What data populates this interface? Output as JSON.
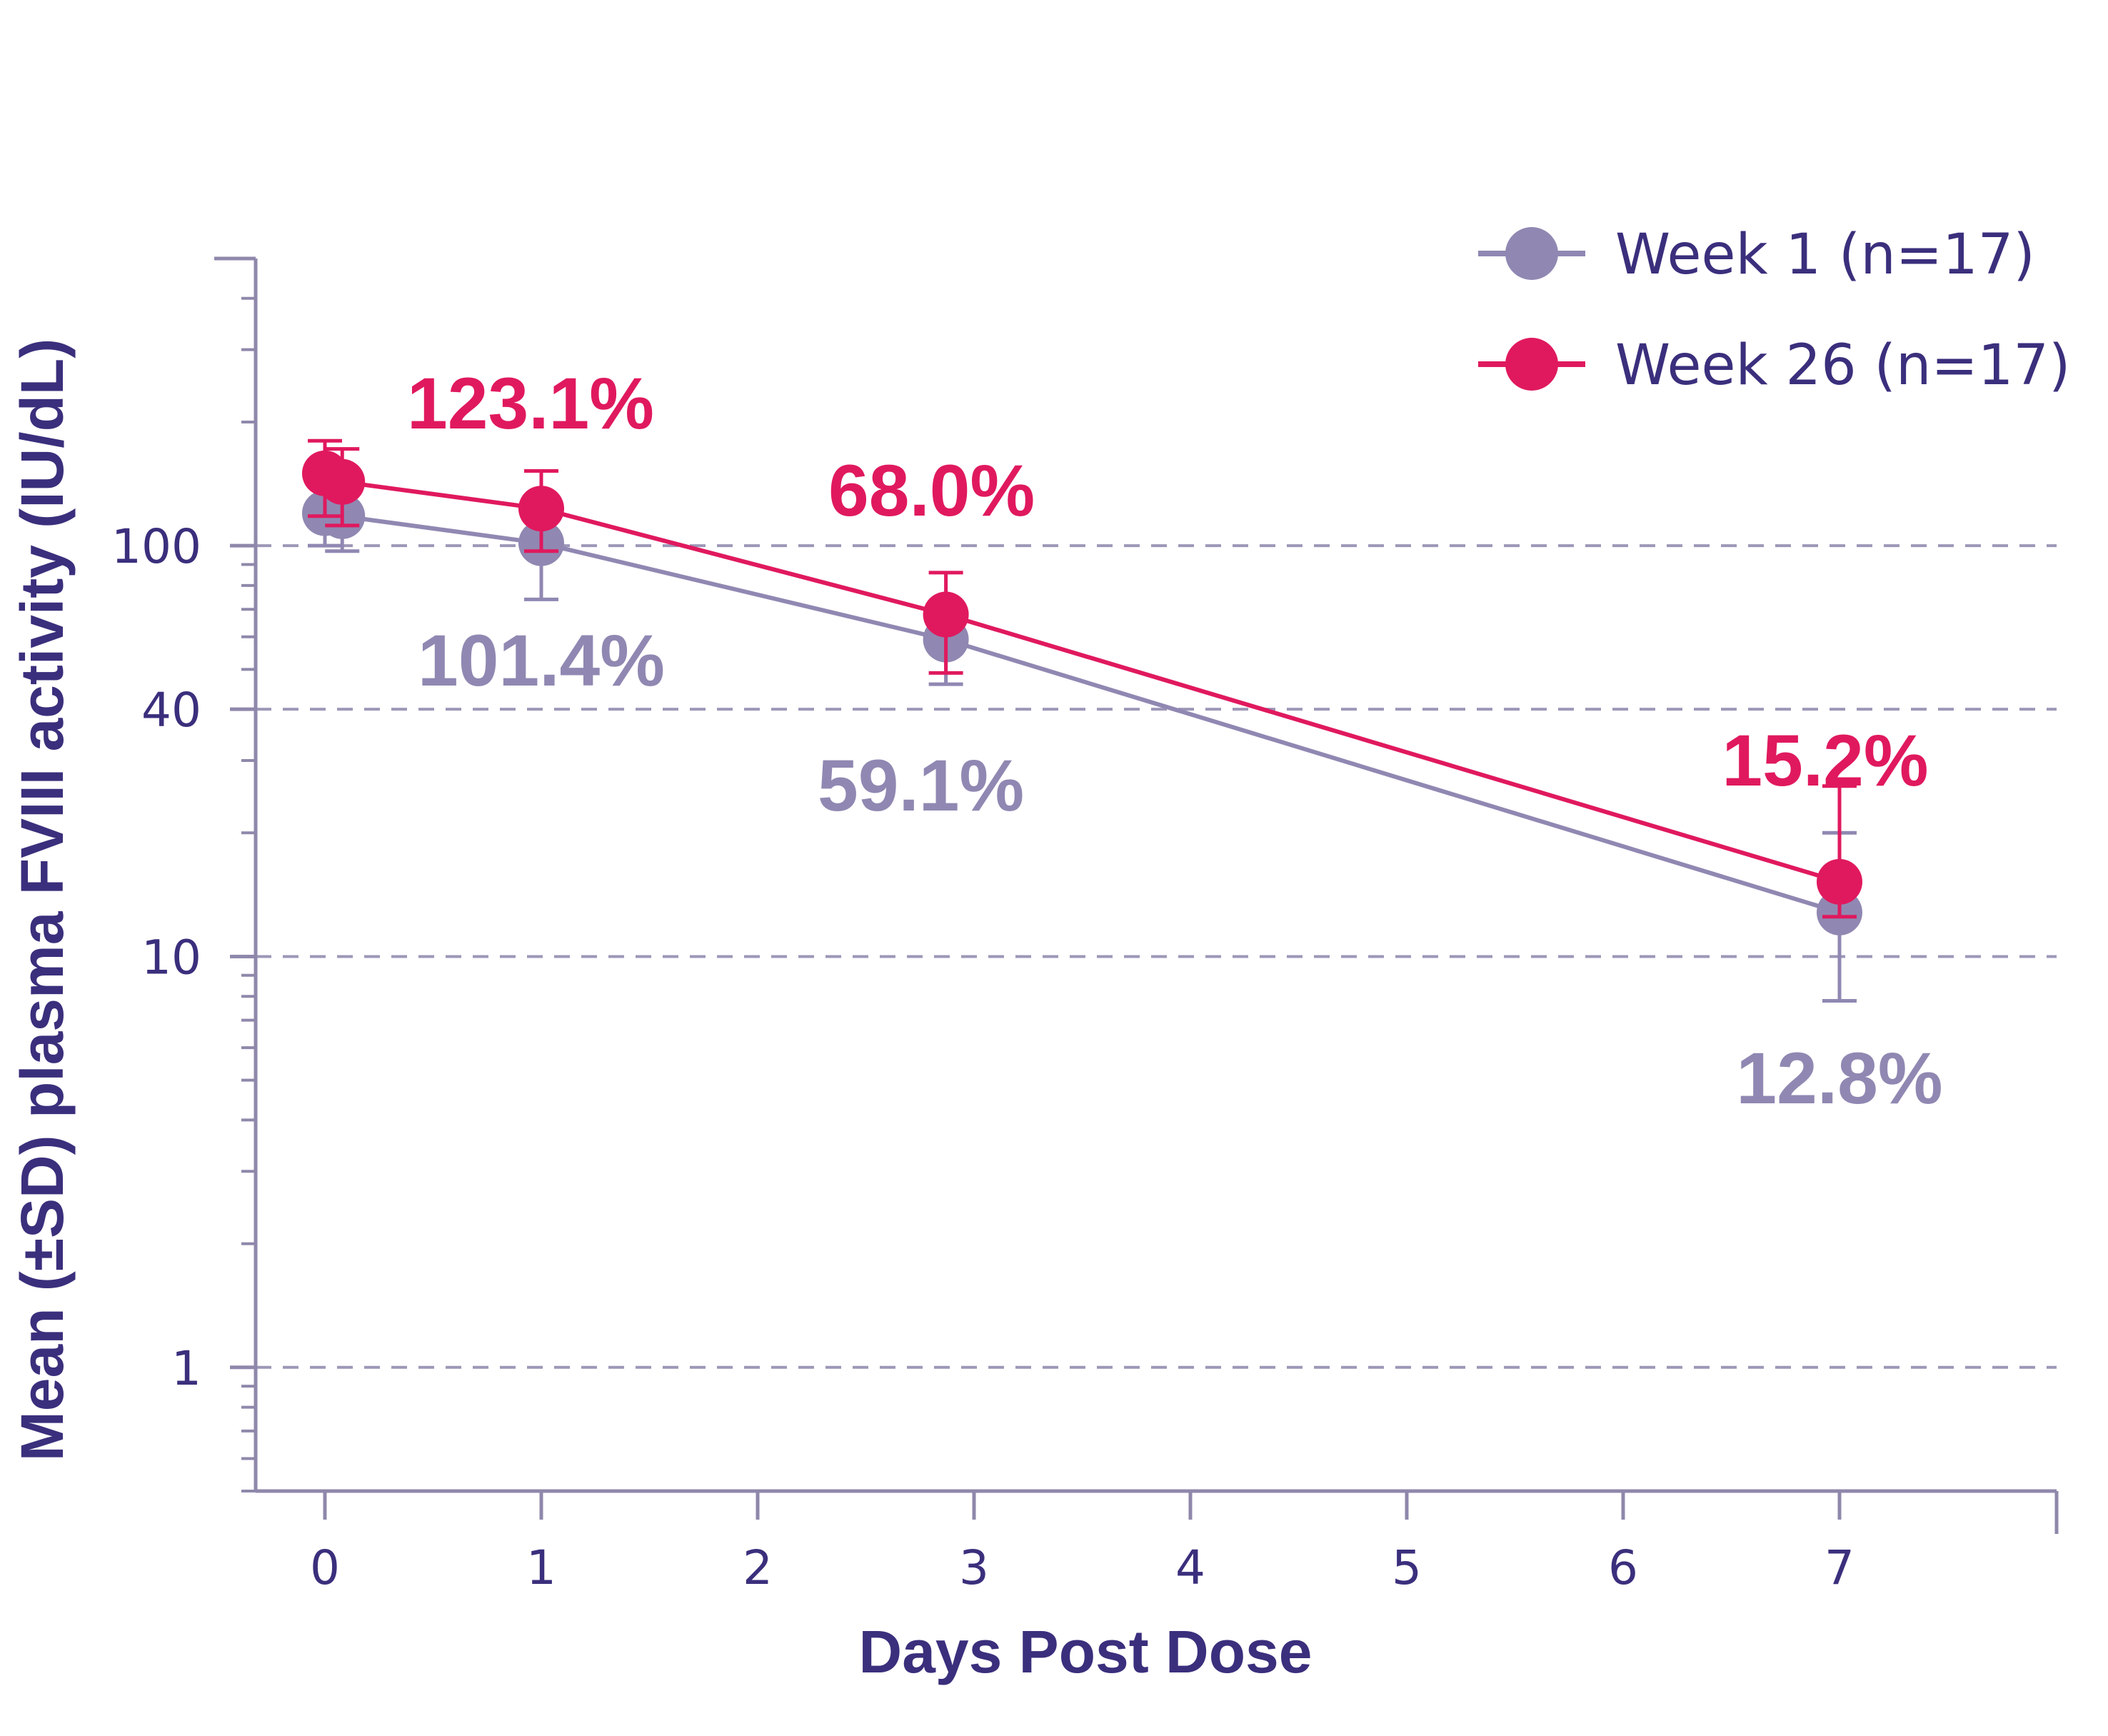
{
  "chart_data": {
    "type": "line",
    "title": "",
    "xlabel": "Days Post Dose",
    "ylabel": "Mean (±SD) plasma FVIII activity (IU/dL)",
    "x_ticks": [
      "0",
      "1",
      "2",
      "3",
      "4",
      "5",
      "6",
      "7"
    ],
    "xlim": [
      -0.35,
      8
    ],
    "y_scale": "log",
    "y_ticks": [
      {
        "value": 1,
        "label": "1"
      },
      {
        "value": 10,
        "label": "10"
      },
      {
        "value": 40,
        "label": "40"
      },
      {
        "value": 100,
        "label": "100"
      }
    ],
    "ylim": [
      0.5,
      500
    ],
    "grid": "horizontal dashed at 1, 10, 40, 100",
    "legend_position": "top-right",
    "series": [
      {
        "name": "Week 1 (n=17)",
        "color": "#9088b2",
        "points": [
          {
            "x": 0,
            "y": 120,
            "sd_low": 100,
            "sd_high": 146
          },
          {
            "x": 0.08,
            "y": 118,
            "sd_low": 97,
            "sd_high": 140
          },
          {
            "x": 1,
            "y": 101.4,
            "sd_low": 74,
            "sd_high": 120
          },
          {
            "x": 2.87,
            "y": 59.1,
            "sd_low": 46,
            "sd_high": 72
          },
          {
            "x": 7,
            "y": 12.8,
            "sd_low": 7.8,
            "sd_high": 20
          }
        ],
        "annotations": [
          {
            "x": 1,
            "label": "101.4%"
          },
          {
            "x": 2.87,
            "label": "59.1%"
          },
          {
            "x": 7,
            "label": "12.8%"
          }
        ]
      },
      {
        "name": "Week 26 (n=17)",
        "color": "#e0195e",
        "points": [
          {
            "x": 0,
            "y": 150,
            "sd_low": 118,
            "sd_high": 180
          },
          {
            "x": 0.08,
            "y": 143,
            "sd_low": 112,
            "sd_high": 172
          },
          {
            "x": 1,
            "y": 123.1,
            "sd_low": 97,
            "sd_high": 152
          },
          {
            "x": 2.87,
            "y": 68.0,
            "sd_low": 49,
            "sd_high": 86
          },
          {
            "x": 7,
            "y": 15.2,
            "sd_low": 12.5,
            "sd_high": 26
          }
        ],
        "annotations": [
          {
            "x": 1,
            "label": "123.1%"
          },
          {
            "x": 2.87,
            "label": "68.0%"
          },
          {
            "x": 7,
            "label": "15.2%"
          }
        ]
      }
    ],
    "colors": {
      "axis": "#8f88ab",
      "text": "#3a2f7c",
      "grid": "#9d97b7"
    }
  }
}
